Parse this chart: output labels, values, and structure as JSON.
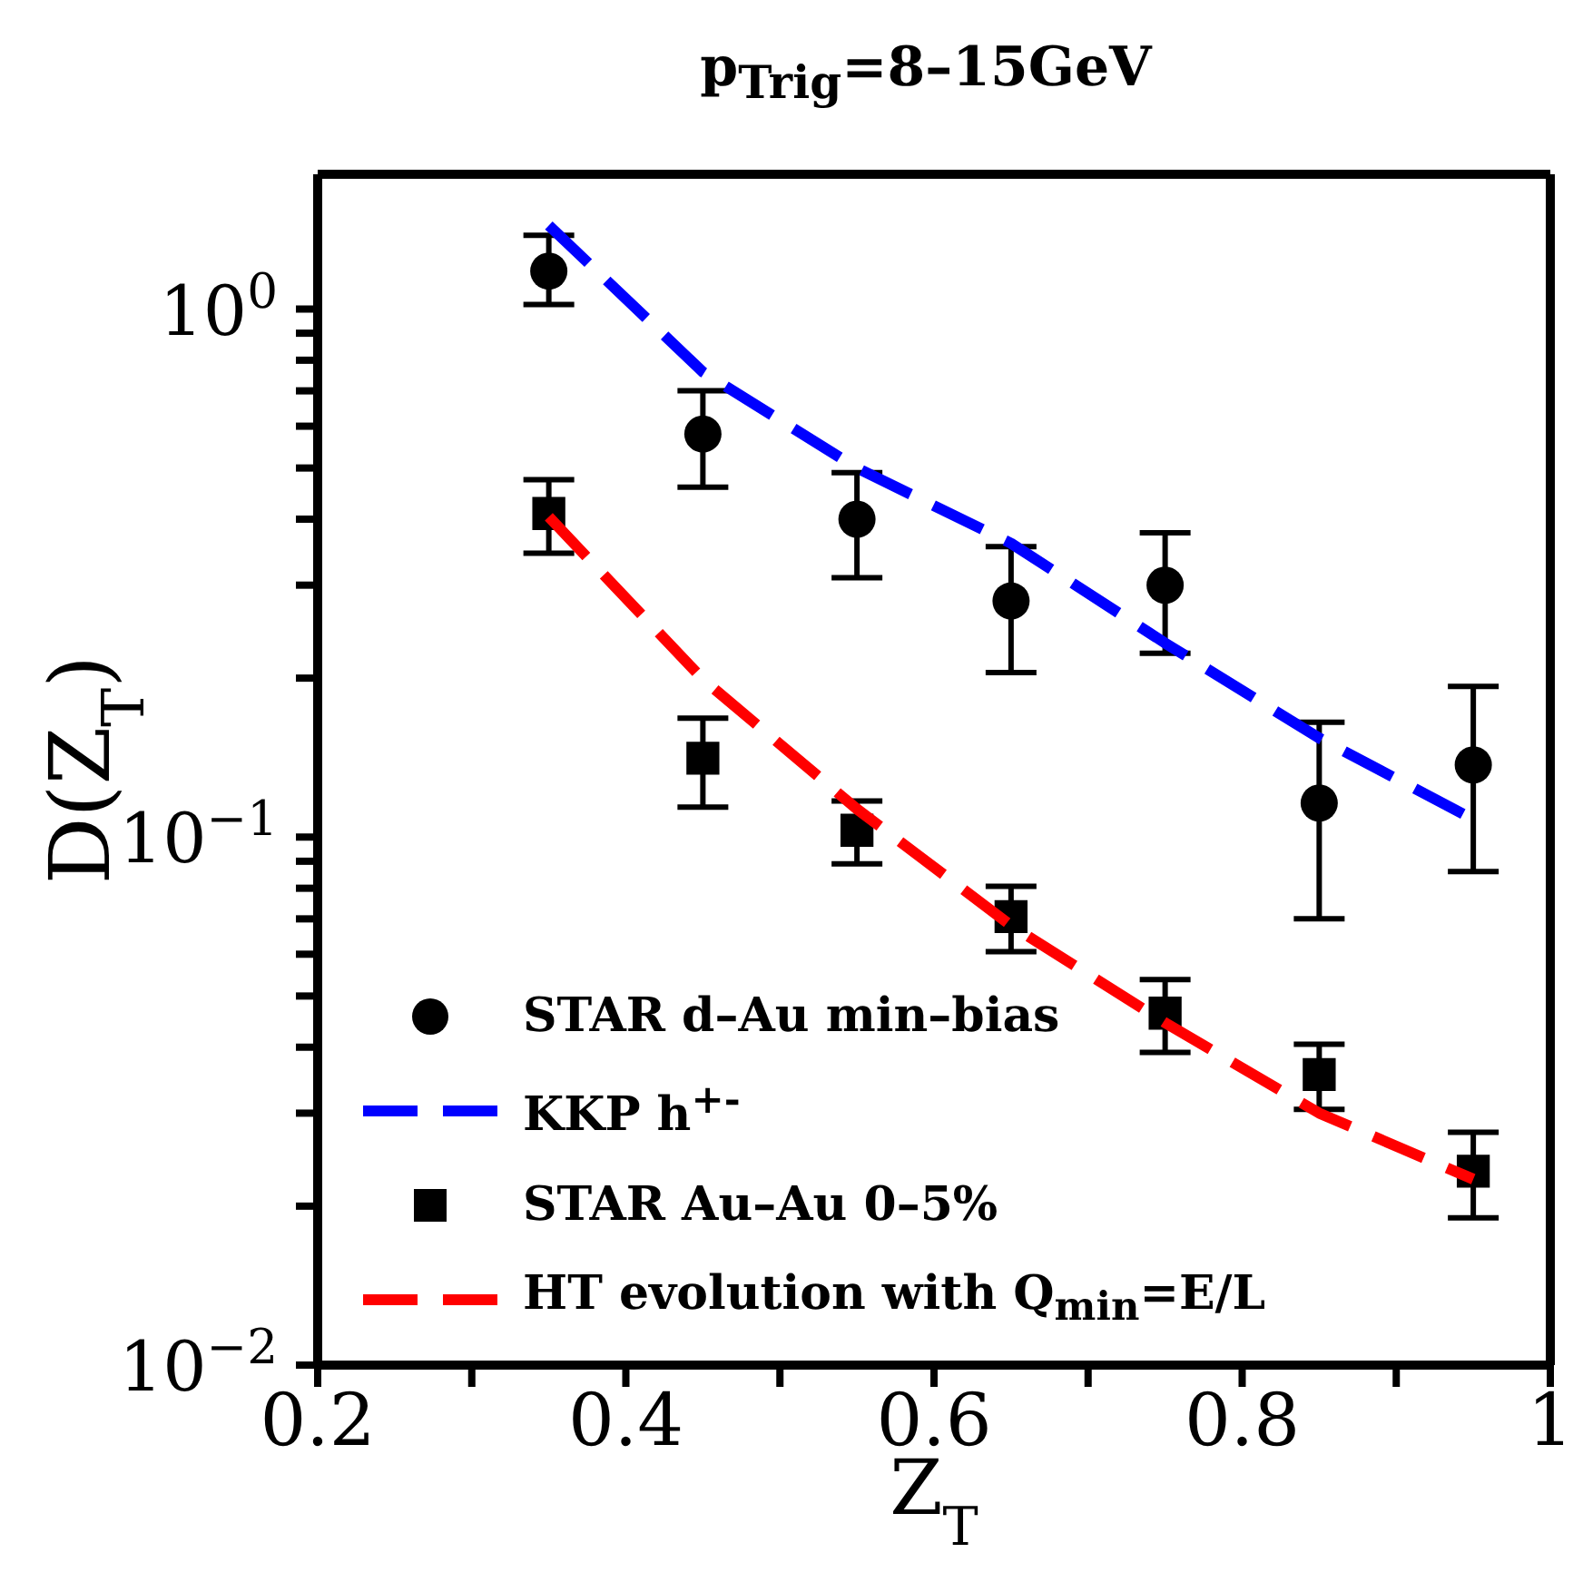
{
  "chart_data": {
    "type": "scatter",
    "title": "p$_{Trig}$=8–15GeV",
    "xlabel": "Z$_{T}$",
    "ylabel": "D(Z$_{T}$)",
    "x": [
      0.35,
      0.45,
      0.55,
      0.65,
      0.75,
      0.85,
      0.95
    ],
    "series": [
      {
        "name": "STAR d–Au min–bias",
        "marker": "circle",
        "color": "#000000",
        "values": [
          1.18,
          0.58,
          0.4,
          0.28,
          0.3,
          0.116,
          0.137
        ],
        "errors": [
          [
            1.02,
            1.38
          ],
          0.12,
          0.09,
          0.075,
          0.077,
          [
            0.07,
            0.165
          ],
          [
            0.086,
            0.193
          ]
        ]
      },
      {
        "name": "KKP h$^{+-}$",
        "type": "line",
        "line_style": "dashed",
        "color": "#0000ff",
        "values": [
          1.44,
          0.76,
          0.5,
          0.36,
          0.233,
          0.154,
          0.108
        ]
      },
      {
        "name": "STAR Au–Au 0–5%",
        "marker": "square",
        "color": "#000000",
        "values": [
          0.41,
          0.141,
          0.103,
          0.0707,
          0.0464,
          0.0355,
          0.0233
        ],
        "errors": [
          0.065,
          0.027,
          0.014,
          0.01,
          0.0073,
          0.005,
          0.0043
        ]
      },
      {
        "name": "HT evolution with Q$_{min}$=E/L",
        "type": "line",
        "line_style": "dashed",
        "color": "#ff0000",
        "values": [
          0.404,
          0.199,
          0.113,
          0.068,
          0.0445,
          0.03,
          0.0225
        ]
      }
    ],
    "log": "y",
    "xlim": [
      0.2,
      1
    ],
    "ylim": [
      0.01,
      1.8
    ],
    "xticks": [
      0.2,
      {
        "value": 0.3,
        "label": null
      },
      0.4,
      {
        "value": 0.5,
        "label": null
      },
      0.6,
      {
        "value": 0.7,
        "label": null
      },
      0.8,
      {
        "value": 0.9,
        "label": null
      },
      1
    ],
    "yticks": [
      {
        "value": 0.01,
        "label": "10$^{−2}$"
      },
      {
        "value": 0.02,
        "label": null
      },
      {
        "value": 0.03,
        "label": null
      },
      {
        "value": 0.04,
        "label": null
      },
      {
        "value": 0.05,
        "label": null
      },
      {
        "value": 0.06,
        "label": null
      },
      {
        "value": 0.07,
        "label": null
      },
      {
        "value": 0.08,
        "label": null
      },
      {
        "value": 0.09,
        "label": null
      },
      {
        "value": 0.1,
        "label": "10$^{−1}$"
      },
      {
        "value": 0.2,
        "label": null
      },
      {
        "value": 0.3,
        "label": null
      },
      {
        "value": 0.4,
        "label": null
      },
      {
        "value": 0.5,
        "label": null
      },
      {
        "value": 0.6,
        "label": null
      },
      {
        "value": 0.7,
        "label": null
      },
      {
        "value": 0.8,
        "label": null
      },
      {
        "value": 0.9,
        "label": null
      },
      {
        "value": 1,
        "label": "10$^{0}$"
      }
    ],
    "grid": false,
    "legend": "bottom left"
  }
}
